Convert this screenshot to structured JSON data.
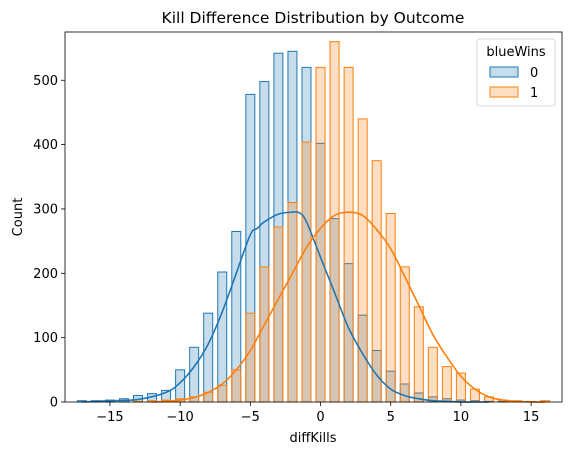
{
  "chart_data": {
    "type": "histogram",
    "title": "Kill Difference Distribution by Outcome",
    "xlabel": "diffKills",
    "ylabel": "Count",
    "xlim": [
      -18.2,
      17.2
    ],
    "ylim": [
      0,
      575
    ],
    "x_ticks": [
      -15,
      -10,
      -5,
      0,
      5,
      10,
      15
    ],
    "y_ticks": [
      0,
      100,
      200,
      300,
      400,
      500
    ],
    "grid": false,
    "bin_width": 0.64,
    "legend": {
      "title": "blueWins",
      "position": "top-right"
    },
    "series": [
      {
        "name": "0",
        "color": "#1f77b4",
        "fill": "rgba(31,119,180,0.25)",
        "x": [
          -17,
          -16,
          -15,
          -14,
          -13,
          -12,
          -11,
          -10,
          -9,
          -8,
          -7,
          -6,
          -5,
          -4,
          -3,
          -2,
          -1,
          0,
          1,
          2,
          3,
          4,
          5,
          6,
          7,
          8,
          9,
          10,
          11,
          12,
          13,
          14,
          15,
          16
        ],
        "values": [
          2,
          2,
          3,
          5,
          10,
          13,
          18,
          50,
          85,
          138,
          202,
          265,
          478,
          498,
          542,
          545,
          520,
          402,
          285,
          215,
          135,
          80,
          48,
          28,
          14,
          8,
          5,
          3,
          2,
          1,
          1,
          0,
          0,
          0
        ]
      },
      {
        "name": "1",
        "color": "#ff7f0e",
        "fill": "rgba(255,127,14,0.25)",
        "x": [
          -17,
          -16,
          -15,
          -14,
          -13,
          -12,
          -11,
          -10,
          -9,
          -8,
          -7,
          -6,
          -5,
          -4,
          -3,
          -2,
          -1,
          0,
          1,
          2,
          3,
          4,
          5,
          6,
          7,
          8,
          9,
          10,
          11,
          12,
          13,
          14,
          15,
          16
        ],
        "values": [
          0,
          0,
          0,
          0,
          1,
          2,
          3,
          5,
          8,
          15,
          26,
          50,
          138,
          210,
          272,
          310,
          404,
          520,
          560,
          520,
          440,
          375,
          293,
          210,
          148,
          85,
          55,
          45,
          20,
          8,
          3,
          2,
          1,
          2
        ]
      }
    ],
    "kde": [
      {
        "name": "0",
        "x": [
          -17,
          -15,
          -13,
          -11,
          -10,
          -9,
          -8,
          -7,
          -6,
          -5,
          -4.5,
          -4,
          -3,
          -2,
          -1.5,
          -1,
          0,
          1,
          2,
          3,
          4,
          5,
          6,
          7,
          8,
          9,
          10,
          11,
          12
        ],
        "y": [
          0,
          2,
          4,
          15,
          30,
          55,
          90,
          140,
          200,
          260,
          270,
          280,
          292,
          295,
          294,
          280,
          225,
          170,
          115,
          75,
          42,
          20,
          10,
          5,
          2,
          1,
          0,
          0,
          0
        ]
      },
      {
        "name": "1",
        "x": [
          -12,
          -11,
          -10,
          -9,
          -8,
          -7,
          -6,
          -5,
          -4,
          -3,
          -2,
          -1,
          0,
          1,
          2,
          3,
          4,
          5,
          6,
          7,
          8,
          9,
          10,
          11,
          12,
          13,
          14,
          15,
          16
        ],
        "y": [
          0,
          1,
          3,
          7,
          15,
          28,
          50,
          80,
          120,
          160,
          200,
          240,
          270,
          290,
          295,
          290,
          268,
          238,
          195,
          150,
          105,
          70,
          40,
          20,
          8,
          3,
          1,
          0,
          0
        ]
      }
    ]
  }
}
